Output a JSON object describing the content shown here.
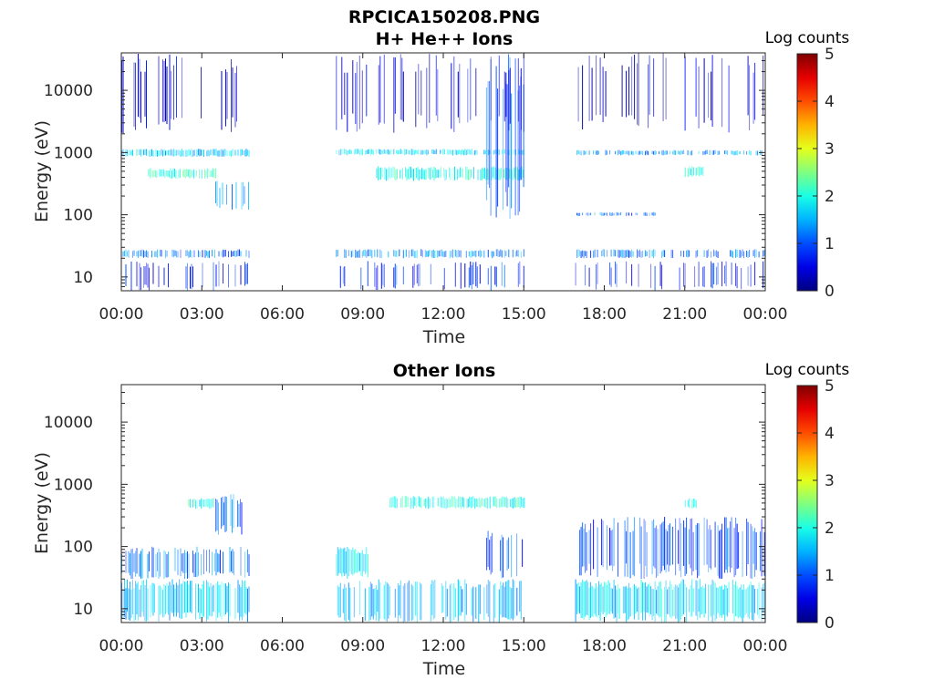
{
  "figure_title": "RPCICA150208.PNG",
  "chart_data": [
    {
      "type": "heatmap",
      "title": "H+ He++ Ions",
      "xlabel": "Time",
      "ylabel": "Energy (eV)",
      "x_tick_labels": [
        "00:00",
        "03:00",
        "06:00",
        "09:00",
        "12:00",
        "15:00",
        "18:00",
        "21:00",
        "00:00"
      ],
      "xlim": [
        "00:00",
        "24:00"
      ],
      "y_scale": "log",
      "ylim": [
        6,
        40000
      ],
      "y_tick_values": [
        10,
        100,
        1000,
        10000
      ],
      "y_tick_labels": [
        "10",
        "100",
        "1000",
        "10000"
      ],
      "colorbar": {
        "label": "Log counts",
        "range": [
          0,
          5
        ],
        "tick_labels": [
          "0",
          "1",
          "2",
          "3",
          "4",
          "5"
        ],
        "colormap": "jet"
      },
      "data_gaps": [
        [
          "04:45",
          "08:00"
        ],
        [
          "15:00",
          "16:55"
        ]
      ],
      "bands": [
        {
          "start": "00:00",
          "end": "04:45",
          "e_low": 20,
          "e_high": 28,
          "log_counts": 1.2
        },
        {
          "start": "00:00",
          "end": "04:45",
          "e_low": 6,
          "e_high": 18,
          "log_counts": 0.7
        },
        {
          "start": "00:00",
          "end": "04:45",
          "e_low": 850,
          "e_high": 1150,
          "log_counts": 1.6
        },
        {
          "start": "01:00",
          "end": "03:30",
          "e_low": 380,
          "e_high": 560,
          "log_counts": 2.1
        },
        {
          "start": "03:30",
          "end": "04:45",
          "e_low": 120,
          "e_high": 350,
          "log_counts": 1.3
        },
        {
          "start": "00:00",
          "end": "04:45",
          "e_low": 2000,
          "e_high": 40000,
          "log_counts": 0.4
        },
        {
          "start": "08:00",
          "end": "15:00",
          "e_low": 20,
          "e_high": 28,
          "log_counts": 1.3
        },
        {
          "start": "08:00",
          "end": "15:00",
          "e_low": 6,
          "e_high": 18,
          "log_counts": 0.8
        },
        {
          "start": "08:00",
          "end": "15:00",
          "e_low": 900,
          "e_high": 1150,
          "log_counts": 1.7
        },
        {
          "start": "09:30",
          "end": "15:00",
          "e_low": 350,
          "e_high": 600,
          "log_counts": 2.0
        },
        {
          "start": "13:30",
          "end": "15:00",
          "e_low": 80,
          "e_high": 40000,
          "log_counts": 1.0
        },
        {
          "start": "08:00",
          "end": "15:00",
          "e_low": 2000,
          "e_high": 40000,
          "log_counts": 0.4
        },
        {
          "start": "16:55",
          "end": "24:00",
          "e_low": 20,
          "e_high": 28,
          "log_counts": 1.2
        },
        {
          "start": "16:55",
          "end": "24:00",
          "e_low": 6,
          "e_high": 18,
          "log_counts": 0.7
        },
        {
          "start": "16:55",
          "end": "24:00",
          "e_low": 900,
          "e_high": 1100,
          "log_counts": 1.4
        },
        {
          "start": "21:00",
          "end": "21:40",
          "e_low": 400,
          "e_high": 600,
          "log_counts": 2.0
        },
        {
          "start": "16:55",
          "end": "20:00",
          "e_low": 95,
          "e_high": 110,
          "log_counts": 1.1
        },
        {
          "start": "16:55",
          "end": "24:00",
          "e_low": 2000,
          "e_high": 40000,
          "log_counts": 0.4
        }
      ]
    },
    {
      "type": "heatmap",
      "title": "Other Ions",
      "xlabel": "Time",
      "ylabel": "Energy (eV)",
      "x_tick_labels": [
        "00:00",
        "03:00",
        "06:00",
        "09:00",
        "12:00",
        "15:00",
        "18:00",
        "21:00",
        "00:00"
      ],
      "xlim": [
        "00:00",
        "24:00"
      ],
      "y_scale": "log",
      "ylim": [
        6,
        40000
      ],
      "y_tick_values": [
        10,
        100,
        1000,
        10000
      ],
      "y_tick_labels": [
        "10",
        "100",
        "1000",
        "10000"
      ],
      "colorbar": {
        "label": "Log counts",
        "range": [
          0,
          5
        ],
        "tick_labels": [
          "0",
          "1",
          "2",
          "3",
          "4",
          "5"
        ],
        "colormap": "jet"
      },
      "data_gaps": [
        [
          "04:45",
          "08:00"
        ],
        [
          "15:00",
          "16:55"
        ]
      ],
      "bands": [
        {
          "start": "00:00",
          "end": "04:45",
          "e_low": 6,
          "e_high": 30,
          "log_counts": 1.6
        },
        {
          "start": "00:00",
          "end": "04:45",
          "e_low": 30,
          "e_high": 100,
          "log_counts": 1.2
        },
        {
          "start": "02:30",
          "end": "03:30",
          "e_low": 400,
          "e_high": 600,
          "log_counts": 2.0
        },
        {
          "start": "03:30",
          "end": "04:45",
          "e_low": 150,
          "e_high": 700,
          "log_counts": 1.1
        },
        {
          "start": "08:00",
          "end": "15:00",
          "e_low": 6,
          "e_high": 30,
          "log_counts": 1.5
        },
        {
          "start": "08:00",
          "end": "09:15",
          "e_low": 30,
          "e_high": 100,
          "log_counts": 1.8
        },
        {
          "start": "10:00",
          "end": "15:00",
          "e_low": 400,
          "e_high": 650,
          "log_counts": 2.0
        },
        {
          "start": "13:30",
          "end": "15:00",
          "e_low": 30,
          "e_high": 200,
          "log_counts": 1.0
        },
        {
          "start": "16:55",
          "end": "24:00",
          "e_low": 6,
          "e_high": 30,
          "log_counts": 1.7
        },
        {
          "start": "16:55",
          "end": "24:00",
          "e_low": 30,
          "e_high": 300,
          "log_counts": 1.0
        },
        {
          "start": "21:00",
          "end": "21:30",
          "e_low": 400,
          "e_high": 600,
          "log_counts": 2.0
        }
      ]
    }
  ]
}
